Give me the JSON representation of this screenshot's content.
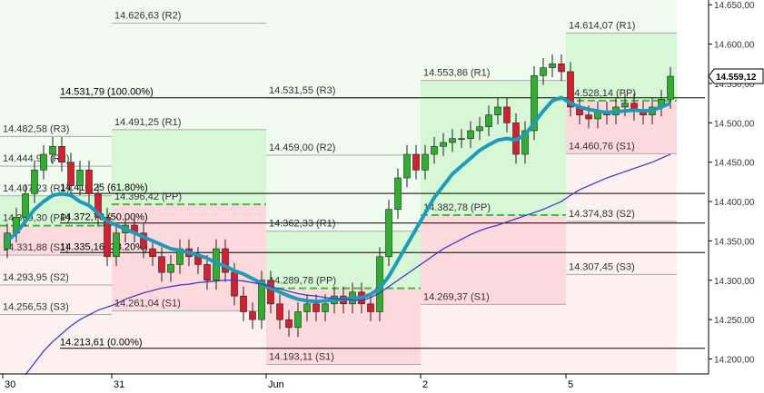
{
  "chart_data": {
    "type": "candlestick",
    "categories": [
      "30",
      null,
      null,
      null,
      null,
      null,
      null,
      null,
      null,
      null,
      null,
      null,
      "31",
      null,
      null,
      null,
      null,
      null,
      null,
      null,
      null,
      null,
      null,
      null,
      null,
      null,
      null,
      null,
      null,
      "Jun",
      null,
      null,
      null,
      null,
      null,
      null,
      null,
      null,
      null,
      null,
      null,
      null,
      null,
      null,
      null,
      null,
      "2",
      null,
      null,
      null,
      null,
      null,
      null,
      null,
      null,
      null,
      null,
      null,
      null,
      null,
      null,
      null,
      "5",
      null,
      null,
      null,
      null,
      null,
      null,
      null,
      null,
      null,
      null,
      null
    ],
    "open": [
      14340,
      14360,
      14380,
      14410,
      14440,
      14460,
      14470,
      14450,
      14420,
      14440,
      14410,
      14380,
      14330,
      14360,
      14370,
      14360,
      14340,
      14330,
      14310,
      14320,
      14340,
      14330,
      14320,
      14300,
      14340,
      14310,
      14280,
      14260,
      14250,
      14300,
      14270,
      14250,
      14240,
      14260,
      14270,
      14260,
      14270,
      14280,
      14270,
      14285,
      14270,
      14260,
      14330,
      14390,
      14430,
      14460,
      14440,
      14460,
      14470,
      14475,
      14480,
      14480,
      14490,
      14495,
      14510,
      14520,
      14500,
      14460,
      14490,
      14560,
      14570,
      14575,
      14565,
      14520,
      14510,
      14505,
      14515,
      14510,
      14520,
      14525,
      14515,
      14510,
      14520,
      14530
    ],
    "high": [
      14372,
      14392,
      14422,
      14452,
      14472,
      14482,
      14482,
      14462,
      14452,
      14452,
      14422,
      14392,
      14372,
      14382,
      14382,
      14372,
      14352,
      14342,
      14332,
      14352,
      14352,
      14342,
      14332,
      14352,
      14352,
      14322,
      14292,
      14272,
      14312,
      14312,
      14282,
      14262,
      14272,
      14282,
      14282,
      14282,
      14292,
      14292,
      14297,
      14297,
      14282,
      14342,
      14402,
      14442,
      14472,
      14472,
      14472,
      14482,
      14487,
      14492,
      14492,
      14502,
      14507,
      14522,
      14532,
      14532,
      14512,
      14502,
      14572,
      14582,
      14587,
      14587,
      14577,
      14532,
      14522,
      14527,
      14527,
      14532,
      14537,
      14537,
      14527,
      14532,
      14542,
      14571
    ],
    "low": [
      14328,
      14348,
      14368,
      14398,
      14428,
      14448,
      14438,
      14408,
      14408,
      14398,
      14368,
      14318,
      14318,
      14348,
      14348,
      14328,
      14318,
      14298,
      14298,
      14308,
      14318,
      14308,
      14288,
      14288,
      14298,
      14268,
      14248,
      14238,
      14238,
      14258,
      14238,
      14228,
      14228,
      14248,
      14248,
      14248,
      14258,
      14258,
      14258,
      14258,
      14248,
      14248,
      14318,
      14378,
      14418,
      14428,
      14428,
      14448,
      14458,
      14463,
      14468,
      14468,
      14478,
      14483,
      14498,
      14488,
      14448,
      14448,
      14478,
      14548,
      14558,
      14553,
      14508,
      14498,
      14493,
      14493,
      14498,
      14498,
      14508,
      14503,
      14498,
      14498,
      14508,
      14518
    ],
    "close": [
      14360,
      14380,
      14410,
      14440,
      14460,
      14470,
      14450,
      14420,
      14440,
      14410,
      14380,
      14330,
      14360,
      14370,
      14360,
      14340,
      14330,
      14310,
      14320,
      14340,
      14330,
      14320,
      14300,
      14340,
      14310,
      14280,
      14260,
      14250,
      14300,
      14270,
      14250,
      14240,
      14260,
      14270,
      14260,
      14270,
      14280,
      14270,
      14285,
      14270,
      14260,
      14330,
      14390,
      14430,
      14460,
      14440,
      14460,
      14470,
      14475,
      14480,
      14480,
      14490,
      14495,
      14510,
      14520,
      14500,
      14460,
      14490,
      14560,
      14570,
      14575,
      14565,
      14520,
      14510,
      14505,
      14515,
      14510,
      14520,
      14525,
      14515,
      14510,
      14520,
      14530,
      14559.12
    ],
    "up_color": "#2fae2f",
    "down_color": "#d4202e",
    "series": [
      {
        "color": "#1f9bb8",
        "values": [
          14350,
          14360,
          14375,
          14390,
          14400,
          14408,
          14410,
          14408,
          14400,
          14395,
          14385,
          14375,
          14370,
          14365,
          14360,
          14355,
          14350,
          14345,
          14340,
          14338,
          14335,
          14332,
          14328,
          14322,
          14318,
          14312,
          14308,
          14302,
          14296,
          14290,
          14285,
          14280,
          14276,
          14274,
          14273,
          14274,
          14275,
          14276,
          14277,
          14278,
          14282,
          14290,
          14305,
          14325,
          14345,
          14365,
          14385,
          14405,
          14420,
          14435,
          14445,
          14455,
          14465,
          14472,
          14478,
          14480,
          14478,
          14485,
          14500,
          14515,
          14528,
          14532,
          14525,
          14520,
          14517,
          14515,
          14513,
          14514,
          14515,
          14516,
          14515,
          14516,
          14520,
          14525
        ]
      },
      {
        "color": "#3a32c8",
        "values": [
          null,
          null,
          14180,
          14195,
          14210,
          14222,
          14232,
          14242,
          14250,
          14256,
          14262,
          14266,
          14270,
          14276,
          14280,
          14284,
          14287,
          14290,
          14292,
          14294,
          14295,
          14297,
          14298,
          14299,
          14300,
          14300,
          14299,
          14297,
          14295,
          14292,
          14289,
          14286,
          14283,
          14281,
          14280,
          14278,
          14277,
          14276,
          14275,
          14274,
          14278,
          14284,
          14292,
          14300,
          14308,
          14316,
          14324,
          14332,
          14340,
          14346,
          14352,
          14358,
          14363,
          14367,
          14370,
          14374,
          14378,
          14382,
          14386,
          14390,
          14395,
          14400,
          14408,
          14415,
          14420,
          14425,
          14430,
          14434,
          14438,
          14442,
          14446,
          14450,
          14455,
          14460
        ]
      }
    ],
    "pivot_days": [
      {
        "resistances": [
          {
            "value": 14482.58,
            "label": "14.482,58 (R3)"
          },
          {
            "value": 14444.9,
            "label": "14.444,90 (R2)"
          },
          {
            "value": 14407.23,
            "label": "14.407,23 (R1)"
          }
        ],
        "pivot": {
          "value": 14369.3,
          "label": "14.369,30 (PP)"
        },
        "supports": [
          {
            "value": 14331.88,
            "label": "14.331,88 (S1)"
          },
          {
            "value": 14293.95,
            "label": "14.293,95 (S2)"
          },
          {
            "value": 14256.53,
            "label": "14.256,53 (S3)"
          }
        ]
      },
      {
        "resistances": [
          {
            "value": 14626.63,
            "label": "14.626,63 (R2)"
          },
          {
            "value": 14491.25,
            "label": "14.491,25 (R1)"
          }
        ],
        "pivot": {
          "value": 14396.42,
          "label": "14.396,42 (PP)"
        },
        "supports": [
          {
            "value": 14261.04,
            "label": "14.261,04 (S1)"
          }
        ]
      },
      {
        "resistances": [
          {
            "value": 14531.55,
            "label": "14.531,55 (R3)"
          },
          {
            "value": 14459.0,
            "label": "14.459,00 (R2)"
          },
          {
            "value": 14362.33,
            "label": "14.362,33 (R1)"
          }
        ],
        "pivot": {
          "value": 14289.78,
          "label": "14.289,78 (PP)"
        },
        "supports": [
          {
            "value": 14193.11,
            "label": "14.193,11 (S1)"
          }
        ]
      },
      {
        "resistances": [
          {
            "value": 14553.86,
            "label": "14.553,86 (R1)"
          }
        ],
        "pivot": {
          "value": 14382.78,
          "label": "14.382,78 (PP)"
        },
        "supports": [
          {
            "value": 14269.37,
            "label": "14.269,37 (S1)"
          }
        ]
      },
      {
        "resistances": [
          {
            "value": 14614.07,
            "label": "14.614,07 (R1)"
          }
        ],
        "pivot": {
          "value": 14528.14,
          "label": "14.528,14 (PP)"
        },
        "supports": [
          {
            "value": 14460.76,
            "label": "14.460,76 (S1)"
          },
          {
            "value": 14374.83,
            "label": "14.374,83 (S2)"
          },
          {
            "value": 14307.45,
            "label": "14.307,45 (S3)"
          }
        ]
      }
    ],
    "fibonacci": [
      {
        "value": 14531.79,
        "label": "14.531,79 (100.00%)"
      },
      {
        "value": 14410.25,
        "label": "14.410,25 (61.80%)"
      },
      {
        "value": 14372.7,
        "label": "14.372,70 (50.00%)"
      },
      {
        "value": 14335.16,
        "label": "14.335,16 (38.20%)"
      },
      {
        "value": 14213.61,
        "label": "14.213,61 (0.00%)"
      }
    ],
    "last_price": {
      "value": 14559.12,
      "label": "14.559,12"
    },
    "ylim": [
      14181,
      14656
    ],
    "yticks": [
      {
        "value": 14200,
        "label": "14.200,00"
      },
      {
        "value": 14250,
        "label": "14.250,00"
      },
      {
        "value": 14300,
        "label": "14.300,00"
      },
      {
        "value": 14350,
        "label": "14.350,00"
      },
      {
        "value": 14400,
        "label": "14.400,00"
      },
      {
        "value": 14450,
        "label": "14.450,00"
      },
      {
        "value": 14500,
        "label": "14.500,00"
      },
      {
        "value": 14550,
        "label": "14.550,00"
      },
      {
        "value": 14600,
        "label": "14.600,00"
      },
      {
        "value": 14650,
        "label": "14.650,00"
      }
    ]
  }
}
